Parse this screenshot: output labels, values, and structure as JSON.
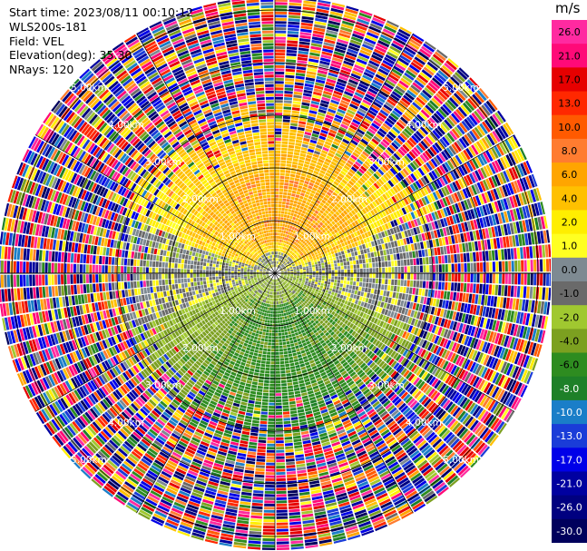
{
  "header": {
    "start_time": "Start time: 2023/08/11 00:10:12",
    "site": "WLS200s-181",
    "field": "Field: VEL",
    "elevation": "Elevation(deg): 35.30",
    "nrays": "NRays: 120"
  },
  "colorbar": {
    "unit": "m/s",
    "ticks": [
      "26.0",
      "21.0",
      "17.0",
      "13.0",
      "10.0",
      "8.0",
      "6.0",
      "4.0",
      "2.0",
      "1.0",
      "0.0",
      "-1.0",
      "-2.0",
      "-4.0",
      "-6.0",
      "-8.0",
      "-10.0",
      "-13.0",
      "-17.0",
      "-21.0",
      "-26.0",
      "-30.0"
    ],
    "colors": [
      "#ff2aa0",
      "#ff0a78",
      "#e60000",
      "#ff2800",
      "#ff5a00",
      "#ff7c30",
      "#ffa500",
      "#ffc000",
      "#ffee00",
      "#ffff22",
      "#7e8a92",
      "#6a6a6a",
      "#a0c830",
      "#7ca020",
      "#2e8c20",
      "#1e8028",
      "#1a7ec8",
      "#1a3cd8",
      "#0000e8",
      "#0000a0",
      "#000080",
      "#00005c"
    ]
  },
  "chart_data": {
    "type": "ppi",
    "title": "",
    "field": "VEL",
    "units": "m/s",
    "nrays": 120,
    "range_rings_km": [
      1.0,
      2.0,
      3.0,
      4.0,
      5.0
    ],
    "ring_labels": [
      "1.00km",
      "2.00km",
      "3.00km",
      "4.00km",
      "5.00km"
    ],
    "pattern": {
      "clean_inner_km": 2.2,
      "noisy_outer_km": 3.4,
      "north_sector_mean_ms": 3.0,
      "south_sector_mean_ms": -5.0,
      "near_center_ms": 0.0
    }
  }
}
